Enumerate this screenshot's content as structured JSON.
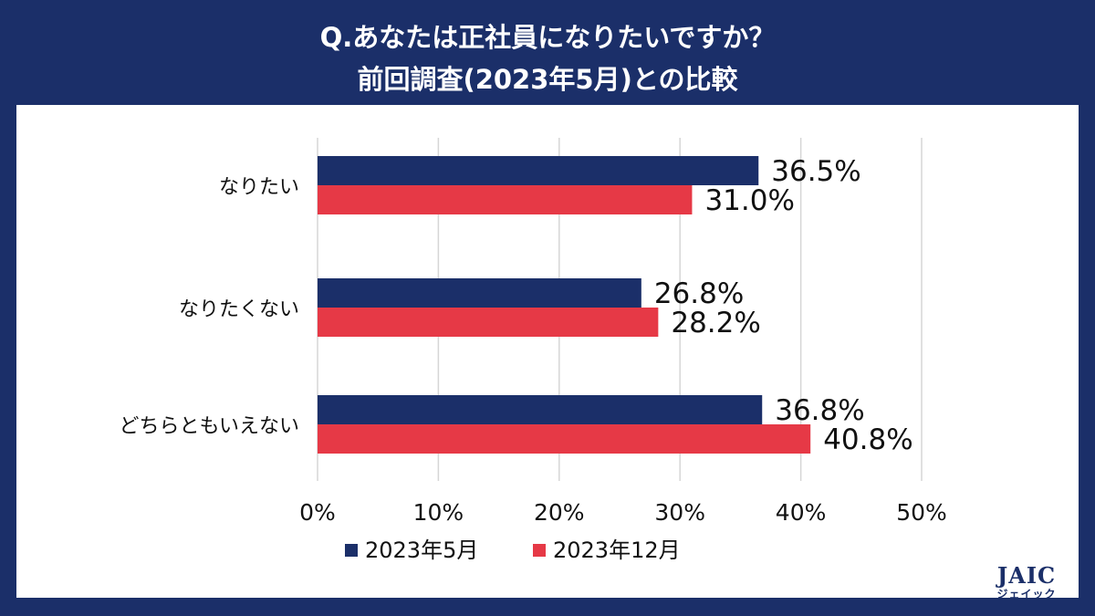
{
  "title": {
    "line1": "Q.あなたは正社員になりたいですか？",
    "line2": "前回調査(2023年5月)との比較"
  },
  "chart_data": {
    "type": "bar",
    "orientation": "horizontal",
    "categories": [
      "なりたい",
      "なりたくない",
      "どちらともいえない"
    ],
    "series": [
      {
        "name": "2023年5月",
        "values": [
          36.5,
          26.8,
          36.8
        ],
        "labels": [
          "36.5%",
          "26.8%",
          "36.8%"
        ],
        "color": "#1b2f69"
      },
      {
        "name": "2023年12月",
        "values": [
          31.0,
          28.2,
          40.8
        ],
        "labels": [
          "31.0%",
          "28.2%",
          "40.8%"
        ],
        "color": "#e63946"
      }
    ],
    "xlim": [
      0,
      50
    ],
    "xticks": [
      "0%",
      "10%",
      "20%",
      "30%",
      "40%",
      "50%"
    ],
    "grid": true,
    "legend_position": "bottom"
  },
  "logo": {
    "main": "JAIC",
    "sub": "ジェイック"
  }
}
